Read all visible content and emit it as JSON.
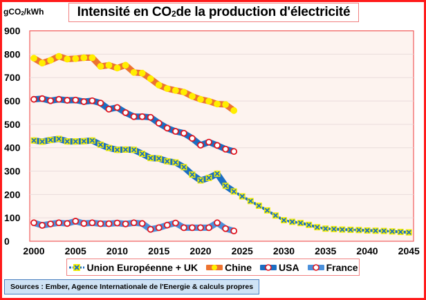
{
  "chart_data": {
    "type": "line",
    "title": "Intensité en CO2 de la production d'électricité",
    "title_parts": [
      "Intensité en CO",
      "2",
      " de la production d'électricité"
    ],
    "ylabel": "gCO2/kWh",
    "ylabel_parts": [
      "gCO",
      "2",
      "/kWh"
    ],
    "xlabel": "",
    "xlim": [
      2000,
      2045
    ],
    "ylim": [
      0,
      900
    ],
    "yticks": [
      0,
      100,
      200,
      300,
      400,
      500,
      600,
      700,
      800,
      900
    ],
    "xticks": [
      2000,
      2005,
      2010,
      2015,
      2020,
      2025,
      2030,
      2035,
      2040,
      2045
    ],
    "grid": "horizontal",
    "legend_position": "bottom",
    "series": [
      {
        "name": "Union Européenne + UK",
        "line_color": "#1b6ec2",
        "marker": "x",
        "marker_fill": "#f5f000",
        "marker_edge": "#1b6ec2",
        "x": [
          2000,
          2001,
          2002,
          2003,
          2004,
          2005,
          2006,
          2007,
          2008,
          2009,
          2010,
          2011,
          2012,
          2013,
          2014,
          2015,
          2016,
          2017,
          2018,
          2019,
          2020,
          2021,
          2022,
          2023,
          2024
        ],
        "values": [
          431,
          426,
          433,
          438,
          427,
          427,
          428,
          431,
          413,
          399,
          391,
          392,
          391,
          374,
          356,
          354,
          342,
          337,
          317,
          285,
          260,
          271,
          289,
          237,
          213
        ]
      },
      {
        "name": "Union Européenne + UK (projection)",
        "legend": false,
        "line_color": "#1b6ec2",
        "marker": "x",
        "marker_fill": "#f5f000",
        "marker_edge": "#1b6ec2",
        "dashed": true,
        "x": [
          2024,
          2025,
          2026,
          2027,
          2028,
          2029,
          2030,
          2031,
          2032,
          2033,
          2034,
          2035,
          2036,
          2037,
          2038,
          2039,
          2040,
          2041,
          2042,
          2043,
          2044,
          2045
        ],
        "values": [
          213,
          192,
          172,
          152,
          132,
          110,
          90,
          83,
          78,
          70,
          60,
          54,
          52,
          50,
          49,
          48,
          46,
          45,
          44,
          42,
          40,
          38
        ]
      },
      {
        "name": "Chine",
        "line_color": "#ed7330",
        "marker": "circle",
        "marker_fill": "#ffee00",
        "marker_edge": "#ffee00",
        "x": [
          2000,
          2001,
          2002,
          2003,
          2004,
          2005,
          2006,
          2007,
          2008,
          2009,
          2010,
          2011,
          2012,
          2013,
          2014,
          2015,
          2016,
          2017,
          2018,
          2019,
          2020,
          2021,
          2022,
          2023,
          2024
        ],
        "values": [
          783,
          762,
          774,
          791,
          779,
          781,
          785,
          785,
          748,
          753,
          741,
          753,
          722,
          719,
          695,
          668,
          653,
          645,
          638,
          620,
          607,
          599,
          587,
          585,
          559
        ]
      },
      {
        "name": "USA",
        "line_color": "#1b6ec2",
        "marker": "circle",
        "marker_fill": "#ffffff",
        "marker_edge": "#e0141e",
        "x": [
          2000,
          2001,
          2002,
          2003,
          2004,
          2005,
          2006,
          2007,
          2008,
          2009,
          2010,
          2011,
          2012,
          2013,
          2014,
          2015,
          2016,
          2017,
          2018,
          2019,
          2020,
          2021,
          2022,
          2023,
          2024
        ],
        "values": [
          607,
          610,
          601,
          607,
          603,
          604,
          597,
          601,
          591,
          565,
          572,
          550,
          533,
          533,
          530,
          505,
          484,
          470,
          462,
          440,
          411,
          424,
          410,
          394,
          384
        ]
      },
      {
        "name": "France",
        "line_color": "#4b90db",
        "marker": "circle",
        "marker_fill": "#ffffff",
        "marker_edge": "#e0141e",
        "x": [
          2000,
          2001,
          2002,
          2003,
          2004,
          2005,
          2006,
          2007,
          2008,
          2009,
          2010,
          2011,
          2012,
          2013,
          2014,
          2015,
          2016,
          2017,
          2018,
          2019,
          2020,
          2021,
          2022,
          2023,
          2024
        ],
        "values": [
          79,
          68,
          74,
          79,
          76,
          86,
          76,
          79,
          75,
          75,
          78,
          74,
          79,
          76,
          51,
          58,
          69,
          78,
          58,
          58,
          58,
          58,
          79,
          54,
          44
        ]
      }
    ],
    "colors": {
      "frame": "#ff1a1a",
      "plot_background": "#fdf3ef",
      "plot_border": "#f05a5a",
      "gridline": "#eadcdc"
    }
  },
  "legend": {
    "items": [
      "Union Européenne + UK",
      "Chine",
      "USA",
      "France"
    ]
  },
  "source": "Sources : Ember, Agence Internationale de l'Energie & calculs propres"
}
